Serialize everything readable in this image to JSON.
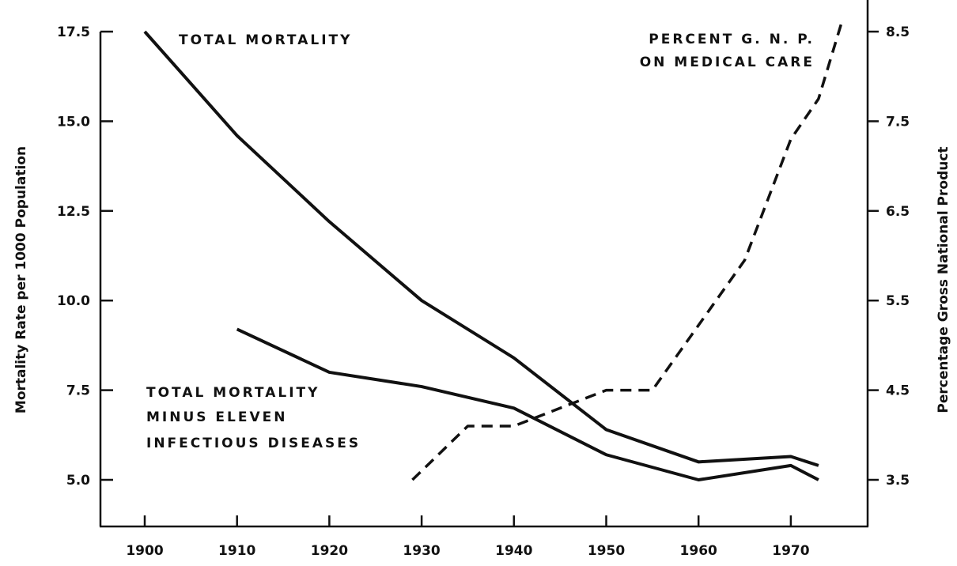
{
  "chart_data": {
    "type": "line",
    "title": "",
    "xlabel": "",
    "ylabel_left": "Mortality Rate per 1000 Population",
    "ylabel_right": "Percentage Gross National Product",
    "xlim": [
      1895,
      1980
    ],
    "ylim_left": [
      3.5,
      17.5
    ],
    "ylim_right": [
      2.9,
      8.6
    ],
    "x_ticks": [
      "1900",
      "1910",
      "1920",
      "1930",
      "1940",
      "1950",
      "1960",
      "1970"
    ],
    "y_left_ticks": [
      "17.5",
      "15.0",
      "12.5",
      "10.0",
      "7.5",
      "5.0"
    ],
    "y_right_ticks": [
      "8.5",
      "7.5",
      "6.5",
      "5.5",
      "4.5",
      "3.5"
    ],
    "grid": false,
    "series": [
      {
        "name": "TOTAL MORTALITY",
        "axis": "left",
        "style": "solid",
        "x": [
          1900,
          1910,
          1920,
          1930,
          1940,
          1950,
          1960,
          1970,
          1973
        ],
        "values": [
          17.5,
          14.6,
          12.2,
          10.0,
          8.4,
          6.4,
          5.5,
          5.65,
          5.4
        ]
      },
      {
        "name": "TOTAL MORTALITY MINUS ELEVEN INFECTIOUS DISEASES",
        "axis": "left",
        "style": "solid",
        "x": [
          1910,
          1920,
          1930,
          1940,
          1950,
          1960,
          1970,
          1973
        ],
        "values": [
          9.2,
          8.0,
          7.6,
          7.0,
          5.7,
          5.0,
          5.4,
          5.0
        ]
      },
      {
        "name": "PERCENT G.N.P. ON MEDICAL CARE",
        "axis": "right",
        "style": "dashed",
        "x": [
          1929,
          1935,
          1940,
          1950,
          1955,
          1965,
          1970,
          1973,
          1975.5
        ],
        "values": [
          3.5,
          4.1,
          4.1,
          4.5,
          4.5,
          5.95,
          7.3,
          7.75,
          8.6
        ]
      }
    ],
    "annotations": {
      "total": "TOTAL MORTALITY",
      "minus": [
        "TOTAL MORTALITY",
        "MINUS ELEVEN",
        "INFECTIOUS DISEASES"
      ],
      "gnp": [
        "PERCENT G. N. P.",
        "ON MEDICAL CARE"
      ]
    }
  }
}
